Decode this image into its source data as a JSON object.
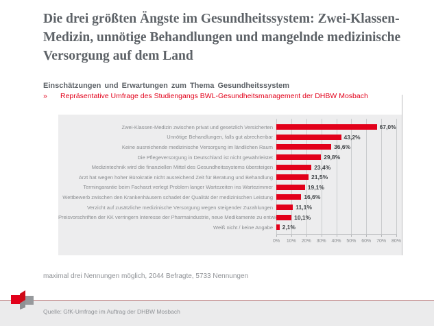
{
  "slide": {
    "title": "Die drei größten Ängste im Gesundheitssystem: Zwei-Klassen-Medizin, unnötige Behandlungen und mangelnde medizinische Versorgung auf dem Land",
    "subtitle": "Einschätzungen und Erwartungen zum Thema Gesundheitssystem",
    "bullet_marker": "»",
    "bullet": "Repräsentative Umfrage des Studiengangs BWL-Gesundheitsmanagement der DHBW Mosbach",
    "note": "maximal drei Nennungen möglich, 2044 Befragte, 5733 Nennungen",
    "source": "Quelle: GfK-Umfrage im Auftrag der DHBW Mosbach"
  },
  "colors": {
    "accent_red": "#e2001a",
    "bar_red": "#e2001a",
    "title_gray": "#5d6267",
    "label_gray": "#8a8d90",
    "chart_background": "#ededee",
    "footer_background": "#ebebec",
    "gridline_gray": "#c9cbcd",
    "divider_red": "#c08384"
  },
  "chart_data": {
    "type": "bar",
    "orientation": "horizontal",
    "title": "",
    "xlabel": "",
    "ylabel": "",
    "xlim": [
      0,
      80
    ],
    "grid": true,
    "legend": false,
    "x_ticks": [
      "0%",
      "10%",
      "20%",
      "30%",
      "40%",
      "50%",
      "60%",
      "70%",
      "80%"
    ],
    "categories": [
      "Zwei-Klassen-Medizin zwischen privat und gesetzlich Versicherten",
      "Unnötige Behandlungen, falls gut abrechenbar",
      "Keine ausreichende medizinische Versorgung im ländlichen Raum",
      "Die Pflegeversorgung in Deutschland ist nicht gewährleistet",
      "Medizintechnik wird die finanziellen Mittel des Gesundheitssystems übersteigen",
      "Arzt hat wegen hoher Bürokratie nicht ausreichend Zeit für Beratung und Behandlung",
      "Termingarantie beim Facharzt verlegt Problem langer Wartezeiten ins Wartezimmer",
      "Wettbewerb zwischen den Krankenhäusern schadet der Qualität der medizinischen Leistung",
      "Verzicht auf zusätzliche medizinische Versorgung wegen steigender Zuzahlungen",
      "Preisvorschriften der KK verringern Interesse der Pharmaindustrie, neue Medikamente zu entwickeln",
      "Weiß nicht / keine Angabe"
    ],
    "values": [
      67.0,
      43.2,
      36.6,
      29.8,
      23.4,
      21.5,
      19.1,
      16.6,
      11.1,
      10.1,
      2.1
    ],
    "value_labels": [
      "67,0%",
      "43,2%",
      "36,6%",
      "29,8%",
      "23,4%",
      "21,5%",
      "19,1%",
      "16,6%",
      "11,1%",
      "10,1%",
      "2,1%"
    ]
  }
}
